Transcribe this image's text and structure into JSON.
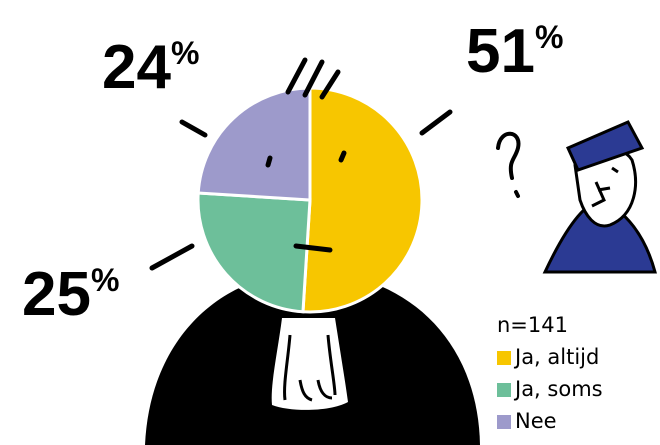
{
  "chart_data": {
    "type": "pie",
    "categories": [
      "Ja, altijd",
      "Ja, soms",
      "Nee"
    ],
    "values": [
      51,
      25,
      24
    ],
    "value_labels": [
      "51%",
      "25%",
      "24%"
    ],
    "colors": [
      "#f7c600",
      "#6dbf9a",
      "#9d9acb"
    ],
    "annotation": "n=141"
  }
}
